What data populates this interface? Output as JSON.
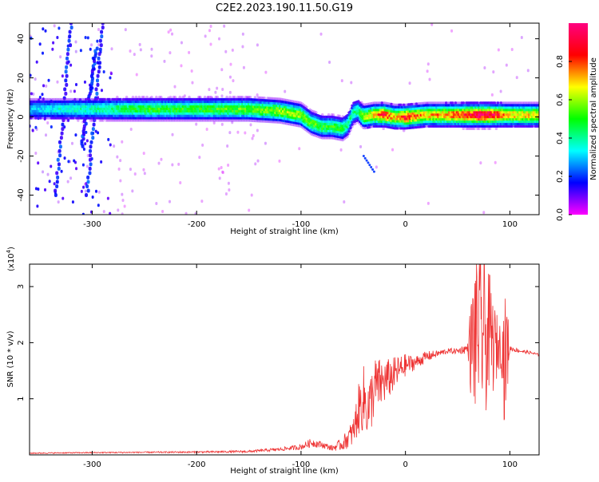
{
  "figure": {
    "title": "C2E2.2023.190.11.50.G19"
  },
  "chart_data": [
    {
      "type": "heatmap",
      "xlabel": "Height of straight line (km)",
      "ylabel": "Frequency (Hz)",
      "xlim": [
        -360,
        128
      ],
      "ylim": [
        -50,
        48
      ],
      "xticks": [
        -300,
        -200,
        -100,
        0,
        100
      ],
      "yticks": [
        -40,
        -20,
        0,
        20,
        40
      ],
      "grid": false,
      "colorbar": {
        "label": "Normalized spectral amplitude",
        "range": [
          0,
          1
        ],
        "ticks": [
          0.0,
          0.2,
          0.4,
          0.6,
          0.8
        ],
        "colormap": [
          "#ff00ff",
          "#0000ff",
          "#00ffff",
          "#00ff00",
          "#ffff00",
          "#ff0000",
          "#ff0080"
        ]
      },
      "ridge": {
        "x": [
          -360,
          -300,
          -250,
          -200,
          -150,
          -120,
          -100,
          -90,
          -80,
          -70,
          -60,
          -55,
          -50,
          -45,
          -40,
          -30,
          -20,
          -10,
          0,
          20,
          40,
          60,
          80,
          100,
          128
        ],
        "y": [
          4,
          4,
          4,
          4,
          4,
          3,
          1,
          -3,
          -5,
          -5,
          -6,
          -4,
          2,
          3,
          0,
          1,
          1,
          0,
          0,
          1,
          1,
          1,
          1,
          1,
          1
        ],
        "peak_amplitude": [
          0.3,
          0.4,
          0.5,
          0.5,
          0.55,
          0.6,
          0.6,
          0.55,
          0.5,
          0.5,
          0.5,
          0.45,
          0.4,
          0.45,
          0.6,
          0.7,
          0.85,
          0.7,
          0.85,
          0.7,
          0.75,
          0.9,
          0.95,
          0.7,
          0.7
        ]
      },
      "streaks": [
        {
          "x": [
            -335,
            -320
          ],
          "y": [
            -40,
            48
          ]
        },
        {
          "x": [
            -305,
            -290
          ],
          "y": [
            -40,
            48
          ]
        },
        {
          "x": [
            -310,
            -296
          ],
          "y": [
            -15,
            35
          ]
        }
      ],
      "spur": {
        "x": [
          -40,
          -30
        ],
        "y": [
          -20,
          -28
        ]
      }
    },
    {
      "type": "line",
      "xlabel": "Height of straight line (km)",
      "ylabel": "SNR (10 * v/v)",
      "yscale_label": "(x10",
      "yscale_exponent": "4",
      "xlim": [
        -360,
        128
      ],
      "ylim": [
        0,
        3.4
      ],
      "xticks": [
        -300,
        -200,
        -100,
        0,
        100
      ],
      "yticks": [
        1,
        2,
        3
      ],
      "grid": false,
      "series": [
        {
          "color": "#ee3333",
          "x": [
            -360,
            -300,
            -200,
            -150,
            -120,
            -100,
            -90,
            -80,
            -70,
            -60,
            -50,
            -45,
            -40,
            -35,
            -30,
            -20,
            -10,
            0,
            10,
            20,
            30,
            40,
            50,
            60,
            62,
            65,
            68,
            70,
            72,
            75,
            78,
            80,
            85,
            90,
            92,
            95,
            97,
            100,
            110,
            120,
            128
          ],
          "y": [
            0.03,
            0.04,
            0.05,
            0.06,
            0.1,
            0.14,
            0.22,
            0.18,
            0.12,
            0.2,
            0.4,
            0.8,
            1.0,
            0.8,
            1.2,
            1.3,
            1.45,
            1.6,
            1.65,
            1.75,
            1.8,
            1.85,
            1.85,
            1.9,
            1.9,
            2.0,
            2.2,
            2.4,
            2.1,
            2.3,
            1.9,
            2.2,
            1.9,
            1.95,
            2.0,
            1.6,
            1.9,
            1.9,
            1.85,
            1.82,
            1.78
          ],
          "noise": [
            0.01,
            0.01,
            0.015,
            0.02,
            0.03,
            0.05,
            0.08,
            0.06,
            0.05,
            0.12,
            0.25,
            0.45,
            0.6,
            0.55,
            0.55,
            0.4,
            0.3,
            0.2,
            0.12,
            0.1,
            0.06,
            0.05,
            0.05,
            0.1,
            0.8,
            1.3,
            1.5,
            1.6,
            1.6,
            1.4,
            1.2,
            1.1,
            0.8,
            0.4,
            0.5,
            1.2,
            1.0,
            0.05,
            0.03,
            0.03,
            0.02
          ]
        }
      ]
    }
  ]
}
